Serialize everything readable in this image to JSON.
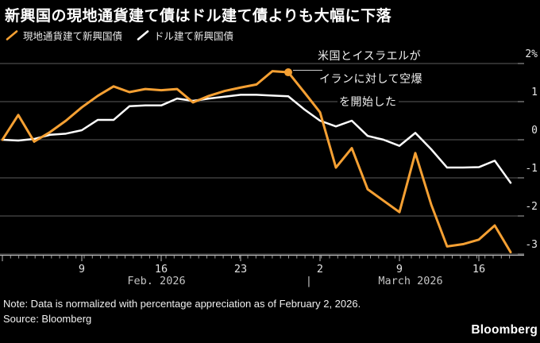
{
  "header": {
    "title": "新興国の現地通貨建て債はドル建て債よりも大幅に下落"
  },
  "annotation": {
    "lines": [
      "米国とイスラエルが",
      "イランに対して空爆",
      "を開始した"
    ]
  },
  "footer": {
    "note": "Note: Data is normalized with percentage appreciation as of February 2, 2026.",
    "source": "Source: Bloomberg",
    "logo": "Bloomberg"
  },
  "chart_data": {
    "type": "line",
    "title": "新興国の現地通貨建て債はドル建て債よりも大幅に下落",
    "x_description": "Weekdays from Feb 2, 2026 to Mar 18, 2026; values normalized to 0% on Feb 2, 2026",
    "x_axis": {
      "week_tick_labels": [
        "9",
        "16",
        "23",
        "2",
        "9",
        "16"
      ],
      "month_labels": [
        "Feb. 2026",
        "March 2026"
      ],
      "separator": "|"
    },
    "y_axis": {
      "unit": "%",
      "range": [
        -3.3,
        2.3
      ],
      "ticks": [
        {
          "value": 2,
          "label": "2%"
        },
        {
          "value": 1,
          "label": "1"
        },
        {
          "value": 0,
          "label": "0"
        },
        {
          "value": -1,
          "label": "-1"
        },
        {
          "value": -2,
          "label": "-2"
        },
        {
          "value": -3,
          "label": "-3"
        }
      ]
    },
    "series": [
      {
        "name": "現地通貨建て新興国債",
        "color": "#F5A033",
        "values": [
          0,
          0.65,
          -0.05,
          0.2,
          0.5,
          0.85,
          1.15,
          1.4,
          1.25,
          1.33,
          1.3,
          1.33,
          0.98,
          1.15,
          1.28,
          1.37,
          1.45,
          1.8,
          1.77,
          1.25,
          0.72,
          -0.73,
          -0.22,
          -1.3,
          -1.6,
          -1.9,
          -0.35,
          -1.7,
          -2.8,
          -2.74,
          -2.62,
          -2.25,
          -2.95
        ]
      },
      {
        "name": "ドル建て新興国債",
        "color": "#FFFFFF",
        "values": [
          0,
          -0.02,
          0.02,
          0.13,
          0.16,
          0.25,
          0.52,
          0.52,
          0.88,
          0.9,
          0.9,
          1.08,
          1.02,
          1.08,
          1.13,
          1.18,
          1.18,
          1.16,
          1.14,
          0.8,
          0.5,
          0.35,
          0.5,
          0.1,
          0,
          -0.16,
          0.18,
          -0.25,
          -0.73,
          -0.73,
          -0.72,
          -0.55,
          -1.13
        ]
      }
    ],
    "marker": {
      "series": 0,
      "index": 18,
      "value": 1.77
    },
    "legend_position": "top-left",
    "grid": "horizontal"
  }
}
